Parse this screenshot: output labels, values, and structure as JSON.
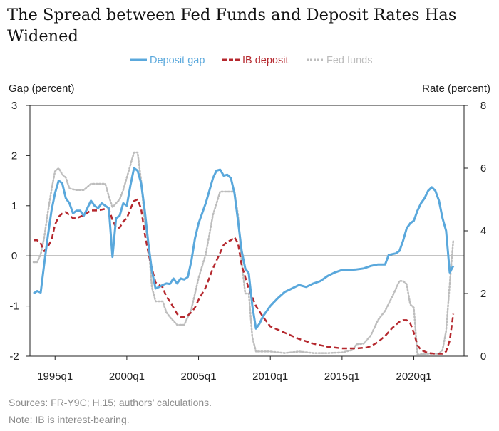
{
  "title": "The Spread between Fed Funds and Deposit Rates Has Widened",
  "chart_data": {
    "type": "line",
    "left_axis": {
      "label": "Gap (percent)",
      "min": -2,
      "max": 3,
      "ticks": [
        "-2",
        "-1",
        "0",
        "1",
        "2",
        "3"
      ]
    },
    "right_axis": {
      "label": "Rate (percent)",
      "min": 0,
      "max": 8,
      "ticks": [
        "0",
        "2",
        "4",
        "6",
        "8"
      ]
    },
    "x_axis": {
      "min": 1993.25,
      "max": 2023.5,
      "ticks": [
        {
          "label": "1995q1",
          "value": 1995.0
        },
        {
          "label": "2000q1",
          "value": 2000.0
        },
        {
          "label": "2005q1",
          "value": 2005.0
        },
        {
          "label": "2010q1",
          "value": 2010.0
        },
        {
          "label": "2015q1",
          "value": 2015.0
        },
        {
          "label": "2020q1",
          "value": 2020.0
        }
      ]
    },
    "legend_position": "top-center",
    "series": [
      {
        "name": "Fed funds",
        "axis": "right",
        "color": "#bdbdbd",
        "style": "dotted",
        "points": [
          [
            1993.5,
            3.0
          ],
          [
            1993.75,
            3.0
          ],
          [
            1994.0,
            3.25
          ],
          [
            1994.25,
            3.8
          ],
          [
            1994.5,
            4.6
          ],
          [
            1994.75,
            5.3
          ],
          [
            1995.0,
            5.9
          ],
          [
            1995.25,
            6.0
          ],
          [
            1995.5,
            5.8
          ],
          [
            1995.75,
            5.7
          ],
          [
            1996.0,
            5.35
          ],
          [
            1996.5,
            5.3
          ],
          [
            1997.0,
            5.3
          ],
          [
            1997.5,
            5.5
          ],
          [
            1998.0,
            5.5
          ],
          [
            1998.5,
            5.5
          ],
          [
            1998.75,
            5.1
          ],
          [
            1999.0,
            4.75
          ],
          [
            1999.5,
            5.0
          ],
          [
            1999.75,
            5.3
          ],
          [
            2000.0,
            5.7
          ],
          [
            2000.5,
            6.5
          ],
          [
            2000.75,
            6.5
          ],
          [
            2001.0,
            5.6
          ],
          [
            2001.25,
            4.3
          ],
          [
            2001.5,
            3.6
          ],
          [
            2001.75,
            2.2
          ],
          [
            2002.0,
            1.75
          ],
          [
            2002.5,
            1.75
          ],
          [
            2002.75,
            1.4
          ],
          [
            2003.0,
            1.25
          ],
          [
            2003.5,
            1.0
          ],
          [
            2004.0,
            1.0
          ],
          [
            2004.5,
            1.5
          ],
          [
            2005.0,
            2.5
          ],
          [
            2005.5,
            3.25
          ],
          [
            2006.0,
            4.5
          ],
          [
            2006.5,
            5.25
          ],
          [
            2007.0,
            5.25
          ],
          [
            2007.5,
            5.25
          ],
          [
            2007.75,
            4.5
          ],
          [
            2008.0,
            3.0
          ],
          [
            2008.25,
            2.0
          ],
          [
            2008.5,
            2.0
          ],
          [
            2008.75,
            0.6
          ],
          [
            2009.0,
            0.15
          ],
          [
            2010.0,
            0.15
          ],
          [
            2011.0,
            0.1
          ],
          [
            2012.0,
            0.15
          ],
          [
            2013.0,
            0.1
          ],
          [
            2014.0,
            0.1
          ],
          [
            2015.0,
            0.12
          ],
          [
            2015.75,
            0.2
          ],
          [
            2016.0,
            0.38
          ],
          [
            2016.5,
            0.4
          ],
          [
            2017.0,
            0.66
          ],
          [
            2017.5,
            1.15
          ],
          [
            2018.0,
            1.45
          ],
          [
            2018.5,
            1.9
          ],
          [
            2019.0,
            2.4
          ],
          [
            2019.25,
            2.4
          ],
          [
            2019.5,
            2.3
          ],
          [
            2019.75,
            1.65
          ],
          [
            2020.0,
            1.55
          ],
          [
            2020.25,
            0.05
          ],
          [
            2021.0,
            0.08
          ],
          [
            2021.75,
            0.08
          ],
          [
            2022.0,
            0.2
          ],
          [
            2022.25,
            0.8
          ],
          [
            2022.5,
            2.3
          ],
          [
            2022.75,
            3.7
          ]
        ]
      },
      {
        "name": "IB deposit",
        "axis": "right",
        "color": "#b5282e",
        "style": "dashed",
        "points": [
          [
            1993.5,
            3.7
          ],
          [
            1993.75,
            3.7
          ],
          [
            1994.0,
            3.6
          ],
          [
            1994.25,
            3.35
          ],
          [
            1994.5,
            3.5
          ],
          [
            1994.75,
            3.7
          ],
          [
            1995.0,
            4.2
          ],
          [
            1995.25,
            4.45
          ],
          [
            1995.5,
            4.55
          ],
          [
            1995.75,
            4.6
          ],
          [
            1996.0,
            4.5
          ],
          [
            1996.25,
            4.4
          ],
          [
            1996.5,
            4.4
          ],
          [
            1996.75,
            4.45
          ],
          [
            1997.0,
            4.5
          ],
          [
            1997.5,
            4.65
          ],
          [
            1998.0,
            4.65
          ],
          [
            1998.5,
            4.7
          ],
          [
            1998.75,
            4.7
          ],
          [
            1999.0,
            4.35
          ],
          [
            1999.25,
            4.1
          ],
          [
            1999.5,
            4.1
          ],
          [
            1999.75,
            4.3
          ],
          [
            2000.0,
            4.4
          ],
          [
            2000.25,
            4.7
          ],
          [
            2000.5,
            4.95
          ],
          [
            2000.75,
            5.0
          ],
          [
            2001.0,
            4.7
          ],
          [
            2001.25,
            3.9
          ],
          [
            2001.5,
            3.3
          ],
          [
            2001.75,
            2.8
          ],
          [
            2002.0,
            2.35
          ],
          [
            2002.5,
            2.2
          ],
          [
            2002.75,
            1.9
          ],
          [
            2003.0,
            1.75
          ],
          [
            2003.25,
            1.55
          ],
          [
            2003.5,
            1.35
          ],
          [
            2003.75,
            1.25
          ],
          [
            2004.0,
            1.25
          ],
          [
            2004.25,
            1.3
          ],
          [
            2004.5,
            1.4
          ],
          [
            2004.75,
            1.55
          ],
          [
            2005.0,
            1.8
          ],
          [
            2005.5,
            2.2
          ],
          [
            2006.0,
            2.8
          ],
          [
            2006.5,
            3.3
          ],
          [
            2006.75,
            3.55
          ],
          [
            2007.0,
            3.65
          ],
          [
            2007.25,
            3.7
          ],
          [
            2007.5,
            3.8
          ],
          [
            2007.75,
            3.6
          ],
          [
            2008.0,
            2.9
          ],
          [
            2008.5,
            2.15
          ],
          [
            2009.0,
            1.6
          ],
          [
            2009.5,
            1.25
          ],
          [
            2010.0,
            0.95
          ],
          [
            2011.0,
            0.75
          ],
          [
            2012.0,
            0.55
          ],
          [
            2013.0,
            0.4
          ],
          [
            2014.0,
            0.3
          ],
          [
            2015.0,
            0.25
          ],
          [
            2016.0,
            0.25
          ],
          [
            2016.75,
            0.28
          ],
          [
            2017.0,
            0.32
          ],
          [
            2017.5,
            0.45
          ],
          [
            2018.0,
            0.65
          ],
          [
            2018.5,
            0.9
          ],
          [
            2019.0,
            1.1
          ],
          [
            2019.25,
            1.15
          ],
          [
            2019.5,
            1.15
          ],
          [
            2019.75,
            1.05
          ],
          [
            2020.0,
            0.75
          ],
          [
            2020.25,
            0.35
          ],
          [
            2020.5,
            0.2
          ],
          [
            2021.0,
            0.1
          ],
          [
            2021.5,
            0.08
          ],
          [
            2022.0,
            0.08
          ],
          [
            2022.25,
            0.15
          ],
          [
            2022.5,
            0.5
          ],
          [
            2022.75,
            1.35
          ]
        ]
      },
      {
        "name": "Deposit gap",
        "axis": "left",
        "color": "#5aa8dc",
        "style": "solid",
        "points": [
          [
            1993.5,
            -0.75
          ],
          [
            1993.75,
            -0.7
          ],
          [
            1994.0,
            -0.73
          ],
          [
            1994.25,
            -0.15
          ],
          [
            1994.5,
            0.4
          ],
          [
            1994.75,
            0.9
          ],
          [
            1995.0,
            1.25
          ],
          [
            1995.25,
            1.5
          ],
          [
            1995.5,
            1.45
          ],
          [
            1995.75,
            1.15
          ],
          [
            1996.0,
            1.05
          ],
          [
            1996.25,
            0.85
          ],
          [
            1996.5,
            0.9
          ],
          [
            1996.75,
            0.9
          ],
          [
            1997.0,
            0.8
          ],
          [
            1997.25,
            0.95
          ],
          [
            1997.5,
            1.1
          ],
          [
            1997.75,
            1.0
          ],
          [
            1998.0,
            0.95
          ],
          [
            1998.25,
            1.05
          ],
          [
            1998.5,
            1.0
          ],
          [
            1998.75,
            0.95
          ],
          [
            1999.0,
            -0.02
          ],
          [
            1999.25,
            0.75
          ],
          [
            1999.5,
            0.8
          ],
          [
            1999.75,
            1.05
          ],
          [
            2000.0,
            1.0
          ],
          [
            2000.25,
            1.4
          ],
          [
            2000.5,
            1.75
          ],
          [
            2000.75,
            1.7
          ],
          [
            2001.0,
            1.45
          ],
          [
            2001.25,
            0.9
          ],
          [
            2001.5,
            0.25
          ],
          [
            2001.75,
            -0.3
          ],
          [
            2002.0,
            -0.65
          ],
          [
            2002.25,
            -0.62
          ],
          [
            2002.5,
            -0.58
          ],
          [
            2002.75,
            -0.55
          ],
          [
            2003.0,
            -0.56
          ],
          [
            2003.25,
            -0.45
          ],
          [
            2003.5,
            -0.55
          ],
          [
            2003.75,
            -0.45
          ],
          [
            2004.0,
            -0.47
          ],
          [
            2004.25,
            -0.42
          ],
          [
            2004.5,
            -0.1
          ],
          [
            2004.75,
            0.35
          ],
          [
            2005.0,
            0.65
          ],
          [
            2005.25,
            0.85
          ],
          [
            2005.5,
            1.05
          ],
          [
            2005.75,
            1.3
          ],
          [
            2006.0,
            1.55
          ],
          [
            2006.25,
            1.7
          ],
          [
            2006.5,
            1.72
          ],
          [
            2006.75,
            1.6
          ],
          [
            2007.0,
            1.62
          ],
          [
            2007.25,
            1.55
          ],
          [
            2007.5,
            1.25
          ],
          [
            2007.75,
            0.7
          ],
          [
            2008.0,
            0.1
          ],
          [
            2008.25,
            -0.25
          ],
          [
            2008.5,
            -0.35
          ],
          [
            2008.75,
            -1.0
          ],
          [
            2009.0,
            -1.45
          ],
          [
            2009.25,
            -1.35
          ],
          [
            2009.5,
            -1.2
          ],
          [
            2010.0,
            -1.0
          ],
          [
            2010.5,
            -0.85
          ],
          [
            2011.0,
            -0.72
          ],
          [
            2011.5,
            -0.65
          ],
          [
            2012.0,
            -0.58
          ],
          [
            2012.5,
            -0.62
          ],
          [
            2013.0,
            -0.55
          ],
          [
            2013.5,
            -0.5
          ],
          [
            2014.0,
            -0.4
          ],
          [
            2014.5,
            -0.33
          ],
          [
            2015.0,
            -0.28
          ],
          [
            2015.5,
            -0.28
          ],
          [
            2016.0,
            -0.27
          ],
          [
            2016.5,
            -0.25
          ],
          [
            2017.0,
            -0.2
          ],
          [
            2017.5,
            -0.17
          ],
          [
            2018.0,
            -0.17
          ],
          [
            2018.25,
            0.02
          ],
          [
            2018.75,
            0.05
          ],
          [
            2019.0,
            0.1
          ],
          [
            2019.25,
            0.3
          ],
          [
            2019.5,
            0.55
          ],
          [
            2019.75,
            0.65
          ],
          [
            2020.0,
            0.7
          ],
          [
            2020.25,
            0.9
          ],
          [
            2020.5,
            1.05
          ],
          [
            2020.75,
            1.15
          ],
          [
            2021.0,
            1.3
          ],
          [
            2021.25,
            1.37
          ],
          [
            2021.5,
            1.3
          ],
          [
            2021.75,
            1.1
          ],
          [
            2022.0,
            0.75
          ],
          [
            2022.25,
            0.5
          ],
          [
            2022.5,
            -0.33
          ],
          [
            2022.75,
            -0.2
          ]
        ]
      }
    ]
  },
  "legend": [
    {
      "name": "Deposit gap",
      "color": "#5aa8dc",
      "style": "solid"
    },
    {
      "name": "IB deposit",
      "color": "#b5282e",
      "style": "dashed"
    },
    {
      "name": "Fed funds",
      "color": "#bdbdbd",
      "style": "dotted"
    }
  ],
  "sources": "Sources: FR-Y9C; H.15; authors’ calculations.",
  "note": "Note: IB is interest-bearing."
}
